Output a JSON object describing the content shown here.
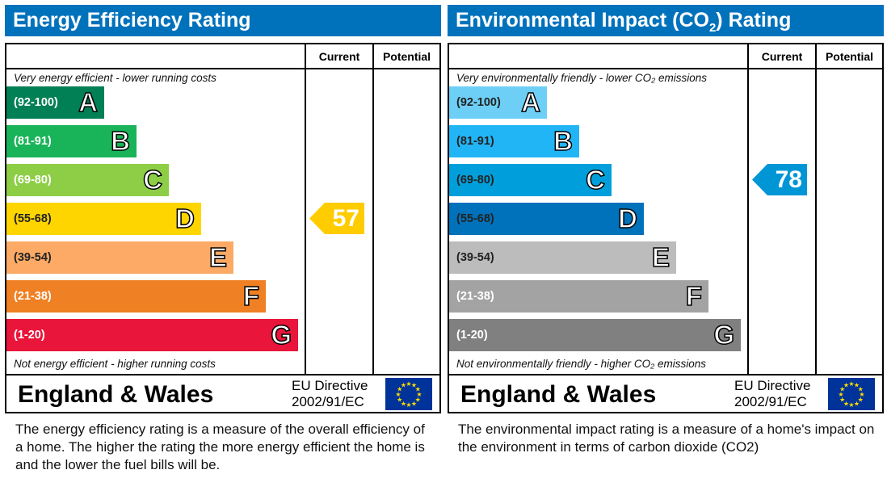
{
  "chart_data": [
    {
      "type": "bar",
      "title": "Energy Efficiency Rating",
      "title_sub": "",
      "columns": [
        "Current",
        "Potential"
      ],
      "top_note": "Very energy efficient - lower running costs",
      "bottom_note": "Not energy efficient - higher running costs",
      "bands": [
        {
          "range": "(92-100)",
          "letter": "A",
          "color": "#008054",
          "text": "#ffffff"
        },
        {
          "range": "(81-91)",
          "letter": "B",
          "color": "#19b459",
          "text": "#ffffff"
        },
        {
          "range": "(69-80)",
          "letter": "C",
          "color": "#8dce46",
          "text": "#ffffff"
        },
        {
          "range": "(55-68)",
          "letter": "D",
          "color": "#ffd500",
          "text": "#222222"
        },
        {
          "range": "(39-54)",
          "letter": "E",
          "color": "#fcaa65",
          "text": "#222222"
        },
        {
          "range": "(21-38)",
          "letter": "F",
          "color": "#ef8023",
          "text": "#ffffff"
        },
        {
          "range": "(1-20)",
          "letter": "G",
          "color": "#e9153b",
          "text": "#ffffff"
        }
      ],
      "current": {
        "value": 57,
        "band": "D",
        "color": "#ffcc00"
      },
      "potential": null,
      "region": "England & Wales",
      "directive": [
        "EU Directive",
        "2002/91/EC"
      ],
      "description": "The energy efficiency rating is a measure of the overall efficiency of a home.  The higher the rating the more energy efficient the home is and the lower the fuel bills will be."
    },
    {
      "type": "bar",
      "title": "Environmental Impact (CO",
      "title_sub": "2",
      "title_end": ") Rating",
      "columns": [
        "Current",
        "Potential"
      ],
      "top_note": "Very environmentally friendly - lower CO₂ emissions",
      "bottom_note": "Not environmentally friendly - higher CO₂ emissions",
      "bands": [
        {
          "range": "(92-100)",
          "letter": "A",
          "color": "#6dcff6",
          "text": "#222222"
        },
        {
          "range": "(81-91)",
          "letter": "B",
          "color": "#22b5f5",
          "text": "#222222"
        },
        {
          "range": "(69-80)",
          "letter": "C",
          "color": "#009fdb",
          "text": "#222222"
        },
        {
          "range": "(55-68)",
          "letter": "D",
          "color": "#0072bb",
          "text": "#222222"
        },
        {
          "range": "(39-54)",
          "letter": "E",
          "color": "#bcbcbc",
          "text": "#222222"
        },
        {
          "range": "(21-38)",
          "letter": "F",
          "color": "#a3a3a3",
          "text": "#ffffff"
        },
        {
          "range": "(1-20)",
          "letter": "G",
          "color": "#808080",
          "text": "#ffffff"
        }
      ],
      "current": {
        "value": 78,
        "band": "C",
        "color": "#0096d6"
      },
      "potential": null,
      "region": "England & Wales",
      "directive": [
        "EU Directive",
        "2002/91/EC"
      ],
      "description": "The environmental impact rating is a measure of a home's impact on the environment in terms of carbon dioxide (CO2)"
    }
  ]
}
